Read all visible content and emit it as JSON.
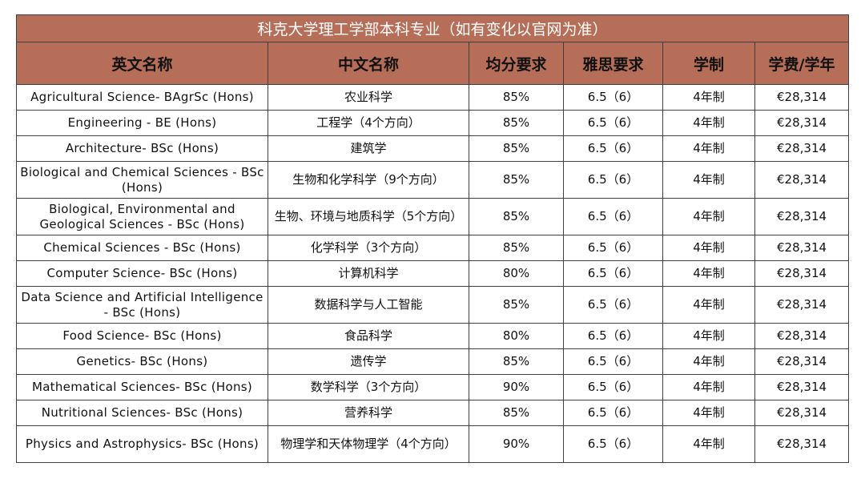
{
  "title": "科克大学理工学部本科专业（如有变化以官网为准）",
  "colors": {
    "header_bg": "#b66e58",
    "title_text": "#ffffff",
    "border": "#3f3f3f"
  },
  "columns": [
    "英文名称",
    "中文名称",
    "均分要求",
    "雅思要求",
    "学制",
    "学费/学年"
  ],
  "rows": [
    {
      "en": "Agricultural Science- BAgrSc (Hons)",
      "zh": "农业科学",
      "score": "85%",
      "ielts": "6.5（6）",
      "duration": "4年制",
      "fee": "€28,314"
    },
    {
      "en": "Engineering - BE (Hons)",
      "zh": "工程学（4个方向）",
      "score": "85%",
      "ielts": "6.5（6）",
      "duration": "4年制",
      "fee": "€28,314"
    },
    {
      "en": "Architecture- BSc (Hons)",
      "zh": "建筑学",
      "score": "85%",
      "ielts": "6.5（6）",
      "duration": "4年制",
      "fee": "€28,314"
    },
    {
      "en": "Biological and Chemical Sciences - BSc (Hons)",
      "zh": "生物和化学科学（9个方向）",
      "score": "85%",
      "ielts": "6.5（6）",
      "duration": "4年制",
      "fee": "€28,314"
    },
    {
      "en": "Biological, Environmental and Geological Sciences - BSc (Hons)",
      "zh": "生物、环境与地质科学（5个方向）",
      "score": "85%",
      "ielts": "6.5（6）",
      "duration": "4年制",
      "fee": "€28,314"
    },
    {
      "en": "Chemical Sciences - BSc (Hons)",
      "zh": "化学科学（3个方向）",
      "score": "85%",
      "ielts": "6.5（6）",
      "duration": "4年制",
      "fee": "€28,314"
    },
    {
      "en": "Computer Science- BSc (Hons)",
      "zh": "计算机科学",
      "score": "80%",
      "ielts": "6.5（6）",
      "duration": "4年制",
      "fee": "€28,314"
    },
    {
      "en": "Data Science and Artificial Intelligence - BSc (Hons)",
      "zh": "数据科学与人工智能",
      "score": "85%",
      "ielts": "6.5（6）",
      "duration": "4年制",
      "fee": "€28,314"
    },
    {
      "en": "Food Science- BSc (Hons)",
      "zh": "食品科学",
      "score": "80%",
      "ielts": "6.5（6）",
      "duration": "4年制",
      "fee": "€28,314"
    },
    {
      "en": "Genetics- BSc (Hons)",
      "zh": "遗传学",
      "score": "85%",
      "ielts": "6.5（6）",
      "duration": "4年制",
      "fee": "€28,314"
    },
    {
      "en": "Mathematical Sciences- BSc (Hons)",
      "zh": "数学科学（3个方向）",
      "score": "90%",
      "ielts": "6.5（6）",
      "duration": "4年制",
      "fee": "€28,314"
    },
    {
      "en": "Nutritional Sciences- BSc (Hons)",
      "zh": "营养科学",
      "score": "85%",
      "ielts": "6.5（6）",
      "duration": "4年制",
      "fee": "€28,314"
    },
    {
      "en": "Physics and Astrophysics- BSc (Hons)",
      "zh": "物理学和天体物理学（4个方向）",
      "score": "90%",
      "ielts": "6.5（6）",
      "duration": "4年制",
      "fee": "€28,314"
    }
  ]
}
